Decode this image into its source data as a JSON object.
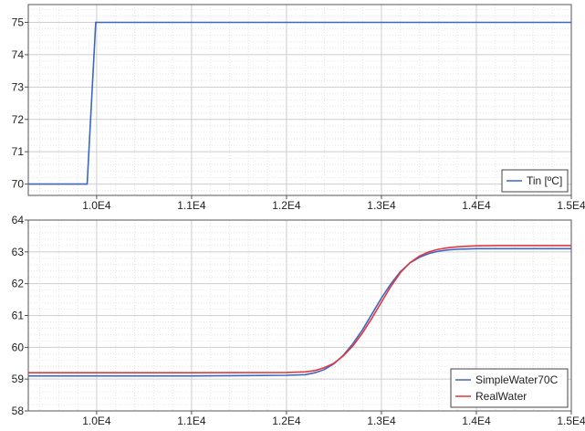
{
  "chart_data": [
    {
      "type": "line",
      "title": "",
      "xlabel": "",
      "ylabel": "",
      "xlim": [
        9280,
        15000
      ],
      "ylim": [
        69.65,
        75.55
      ],
      "grid": true,
      "legend_position": "bottom-right",
      "x_ticks": [
        10000,
        11000,
        12000,
        13000,
        14000,
        15000
      ],
      "x_tick_labels": [
        "1.0E4",
        "1.1E4",
        "1.2E4",
        "1.3E4",
        "1.4E4",
        "1.5E4"
      ],
      "y_ticks": [
        70,
        71,
        72,
        73,
        74,
        75
      ],
      "y_tick_labels": [
        "70",
        "71",
        "72",
        "73",
        "74",
        "75"
      ],
      "series": [
        {
          "name": "Tin [ºC]",
          "color": "#3a66c4",
          "x": [
            9280,
            9900,
            9990,
            15000
          ],
          "y": [
            70.0,
            70.0,
            75.0,
            75.0
          ]
        }
      ]
    },
    {
      "type": "line",
      "title": "",
      "xlabel": "",
      "ylabel": "",
      "xlim": [
        9280,
        15000
      ],
      "ylim": [
        58.0,
        64.0
      ],
      "grid": true,
      "legend_position": "bottom-right",
      "x_ticks": [
        10000,
        11000,
        12000,
        13000,
        14000,
        15000
      ],
      "x_tick_labels": [
        "1.0E4",
        "1.1E4",
        "1.2E4",
        "1.3E4",
        "1.4E4",
        "1.5E4"
      ],
      "y_ticks": [
        58,
        59,
        60,
        61,
        62,
        63,
        64
      ],
      "y_tick_labels": [
        "58",
        "59",
        "60",
        "61",
        "62",
        "63",
        "64"
      ],
      "series": [
        {
          "name": "SimpleWater70C",
          "color": "#3a66c4",
          "x": [
            9280,
            10000,
            11000,
            12000,
            12200,
            12300,
            12400,
            12500,
            12600,
            12700,
            12800,
            12900,
            13000,
            13100,
            13200,
            13300,
            13400,
            13500,
            13600,
            13700,
            13800,
            14000,
            14200,
            14500,
            15000
          ],
          "y": [
            59.1,
            59.1,
            59.1,
            59.12,
            59.14,
            59.2,
            59.3,
            59.48,
            59.75,
            60.12,
            60.55,
            61.05,
            61.55,
            62.0,
            62.38,
            62.65,
            62.83,
            62.95,
            63.02,
            63.06,
            63.08,
            63.1,
            63.1,
            63.1,
            63.1
          ]
        },
        {
          "name": "RealWater",
          "color": "#e0383e",
          "x": [
            9280,
            10000,
            11000,
            12000,
            12200,
            12300,
            12400,
            12500,
            12600,
            12700,
            12800,
            12900,
            13000,
            13100,
            13200,
            13300,
            13400,
            13500,
            13600,
            13700,
            13800,
            14000,
            14200,
            14500,
            15000
          ],
          "y": [
            59.2,
            59.2,
            59.2,
            59.21,
            59.23,
            59.27,
            59.36,
            59.5,
            59.73,
            60.05,
            60.45,
            60.92,
            61.42,
            61.92,
            62.35,
            62.66,
            62.87,
            63.0,
            63.08,
            63.13,
            63.16,
            63.19,
            63.2,
            63.2,
            63.2
          ]
        }
      ]
    }
  ]
}
